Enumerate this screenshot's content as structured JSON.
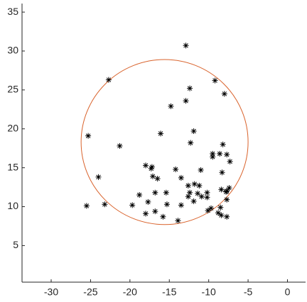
{
  "chart_data": {
    "type": "scatter",
    "x": [
      -12.9,
      -22.7,
      -12.4,
      -9.2,
      -12.9,
      -14.8,
      -8.0,
      -11.9,
      -16.1,
      -25.3,
      -21.3,
      -12.3,
      -8.2,
      -9.5,
      -9.5,
      -8.6,
      -7.7,
      -7.3,
      -18.0,
      -17.2,
      -17.3,
      -11.0,
      -14.2,
      -8.3,
      -17.1,
      -16.5,
      -13.5,
      -24.0,
      -12.6,
      -11.8,
      -11.2,
      -7.4,
      -7.7,
      -8.4,
      -7.8,
      -12.4,
      -11.4,
      -16.8,
      -15.4,
      -12.6,
      -10.9,
      -10.2,
      -10.2,
      -18.8,
      -11.9,
      -7.7,
      -13.5,
      -15.3,
      -17.7,
      -19.7,
      -25.5,
      -23.2,
      -18.0,
      -16.8,
      -15.8,
      -13.9,
      -10.1,
      -9.7,
      -8.8,
      -8.4,
      -7.7,
      -8.5
    ],
    "values": [
      30.7,
      26.3,
      25.2,
      26.2,
      23.6,
      22.9,
      24.5,
      19.7,
      19.4,
      19.1,
      17.8,
      18.2,
      18.0,
      16.8,
      16.4,
      16.8,
      16.7,
      15.8,
      15.3,
      15.1,
      14.9,
      14.7,
      14.8,
      14.4,
      13.9,
      13.6,
      13.7,
      13.8,
      12.7,
      12.9,
      12.7,
      12.4,
      12.0,
      12.2,
      11.9,
      11.8,
      11.7,
      11.8,
      11.8,
      11.3,
      11.3,
      11.8,
      11.2,
      11.5,
      10.7,
      10.9,
      10.2,
      10.3,
      10.6,
      10.2,
      10.1,
      10.3,
      9.1,
      9.4,
      8.7,
      8.2,
      9.5,
      9.8,
      9.2,
      8.9,
      8.7,
      9.9
    ],
    "color": "#000000",
    "circle": {
      "cx": -15.6,
      "cy": 18.3,
      "r": 10.6,
      "color": "#d9622b"
    },
    "xlim": [
      -33.7,
      2.3
    ],
    "ylim": [
      0.3,
      36.1
    ],
    "xticks": [
      -30,
      -25,
      -20,
      -15,
      -10,
      -5,
      0
    ],
    "yticks": [
      5,
      10,
      15,
      20,
      25,
      30,
      35
    ],
    "grid": false
  }
}
